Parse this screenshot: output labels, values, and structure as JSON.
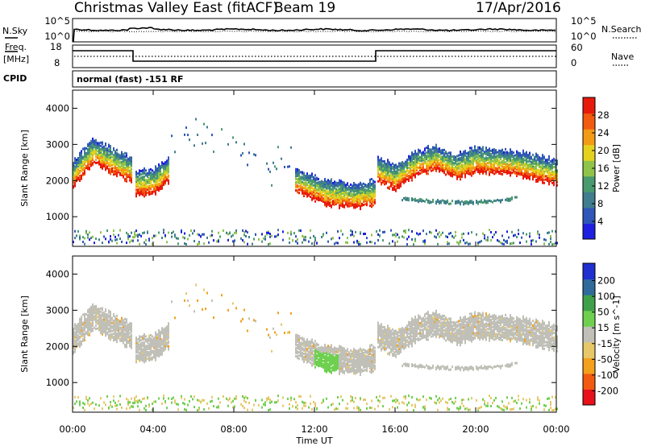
{
  "header": {
    "station": "Christmas Valley East (fitACF)",
    "beam": "Beam 19",
    "date": "17/Apr/2016"
  },
  "left_labels": {
    "nsky": "N.Sky",
    "freq_line1": "Freq.",
    "freq_line2": "[MHz]",
    "cpid": "CPID"
  },
  "right_labels": {
    "nsearch": "N.Search",
    "nave": "Nave"
  },
  "noise_panel": {
    "left_ticks": [
      "10^5",
      "10^0"
    ],
    "right_ticks": [
      "10^5",
      "10^0"
    ]
  },
  "freq_panel": {
    "left_ticks": [
      "18",
      "8"
    ],
    "right_ticks": [
      "60",
      "0"
    ]
  },
  "cpid_text": "normal (fast) -151 RF",
  "x_axis": {
    "title": "Time UT",
    "ticks": [
      "00:00",
      "04:00",
      "08:00",
      "12:00",
      "16:00",
      "20:00",
      "00:00"
    ]
  },
  "chart_data": [
    {
      "type": "heatmap",
      "title": "Power",
      "ylabel": "Slant Range [km]",
      "xlabel": "Time UT",
      "ylim": [
        180,
        4500
      ],
      "y_ticks": [
        "1000",
        "2000",
        "3000",
        "4000"
      ],
      "colorbar": {
        "label": "Power [dB]",
        "ticks": [
          "28",
          "24",
          "20",
          "16",
          "12",
          "8",
          "4"
        ],
        "range": [
          0,
          30
        ],
        "colors": [
          "#1f1fe0",
          "#2f56b8",
          "#3f7d8f",
          "#4a9a6f",
          "#8fc34a",
          "#e5d21f",
          "#f39a16",
          "#f25a10",
          "#e81a0c"
        ]
      },
      "band_centers_km": [
        {
          "t": 0.0,
          "r": 2150
        },
        {
          "t": 1.0,
          "r": 2800
        },
        {
          "t": 2.0,
          "r": 2500
        },
        {
          "t": 2.9,
          "r": 2250
        },
        {
          "t": 3.0,
          "r": 1900
        },
        {
          "t": 4.0,
          "r": 1950
        },
        {
          "t": 4.8,
          "r": 2300
        },
        {
          "t": 11.0,
          "r": 2000
        },
        {
          "t": 12.5,
          "r": 1650
        },
        {
          "t": 14.0,
          "r": 1550
        },
        {
          "t": 15.0,
          "r": 1650
        },
        {
          "t": 15.0,
          "r": 2300
        },
        {
          "t": 16.0,
          "r": 2050
        },
        {
          "t": 17.0,
          "r": 2450
        },
        {
          "t": 18.0,
          "r": 2600
        },
        {
          "t": 19.0,
          "r": 2350
        },
        {
          "t": 20.0,
          "r": 2550
        },
        {
          "t": 22.0,
          "r": 2450
        },
        {
          "t": 24.0,
          "r": 2200
        }
      ]
    },
    {
      "type": "heatmap",
      "title": "Velocity",
      "ylabel": "Slant Range [km]",
      "xlabel": "Time UT",
      "ylim": [
        180,
        4500
      ],
      "y_ticks": [
        "1000",
        "2000",
        "3000",
        "4000"
      ],
      "colorbar": {
        "label": "Velocity [m s^-1]",
        "ticks": [
          "200",
          "100",
          "50",
          "15",
          "-15",
          "-50",
          "-100",
          "-200"
        ],
        "range": [
          -250,
          250
        ],
        "colors": [
          "#e8101a",
          "#f25a12",
          "#f3a01c",
          "#e6c86a",
          "#c0c0b8",
          "#6fd050",
          "#3fa04a",
          "#2f6a9a",
          "#1f2fd0"
        ]
      }
    }
  ]
}
